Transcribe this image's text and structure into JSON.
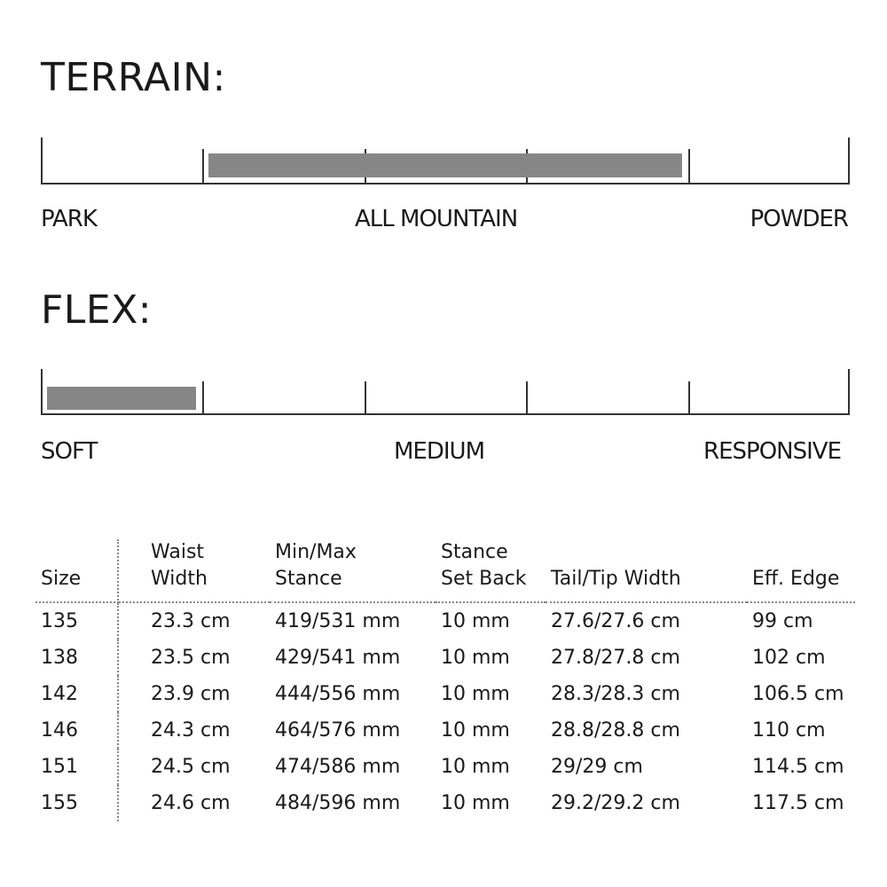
{
  "terrain": {
    "title": "TERRAIN:",
    "labels": [
      "PARK",
      "ALL MOUNTAIN",
      "POWDER"
    ],
    "segments": 5,
    "fill_range": [
      0.2,
      0.8
    ],
    "fill_color": "#868686"
  },
  "flex": {
    "title": "FLEX:",
    "labels": [
      "SOFT",
      "MEDIUM",
      "RESPONSIVE"
    ],
    "segments": 5,
    "fill_range": [
      0,
      0.2
    ],
    "fill_color": "#868686"
  },
  "table": {
    "headers": [
      [
        "",
        "Size"
      ],
      [
        "Waist",
        "Width"
      ],
      [
        "Min/Max",
        "Stance"
      ],
      [
        "Stance",
        "Set Back"
      ],
      [
        "",
        "Tail/Tip Width"
      ],
      [
        "",
        "Eff. Edge"
      ]
    ],
    "rows": [
      [
        "135",
        "23.3 cm",
        "419/531 mm",
        "10 mm",
        "27.6/27.6 cm",
        "99 cm"
      ],
      [
        "138",
        "23.5 cm",
        "429/541 mm",
        "10 mm",
        "27.8/27.8 cm",
        "102 cm"
      ],
      [
        "142",
        "23.9 cm",
        "444/556 mm",
        "10 mm",
        "28.3/28.3 cm",
        "106.5 cm"
      ],
      [
        "146",
        "24.3 cm",
        "464/576 mm",
        "10 mm",
        "28.8/28.8 cm",
        "110 cm"
      ],
      [
        "151",
        "24.5 cm",
        "474/586 mm",
        "10 mm",
        "29/29 cm",
        "114.5 cm"
      ],
      [
        "155",
        "24.6 cm",
        "484/596 mm",
        "10 mm",
        "29.2/29.2 cm",
        "117.5 cm"
      ]
    ]
  }
}
